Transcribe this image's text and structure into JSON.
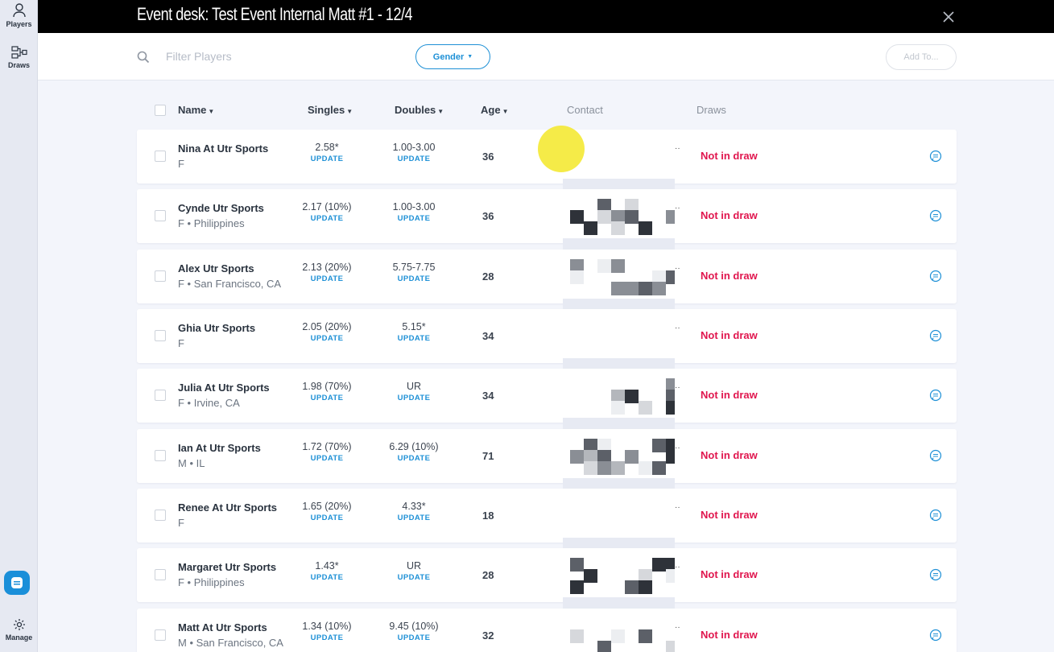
{
  "sidebar": {
    "players_label": "Players",
    "draws_label": "Draws",
    "manage_label": "Manage"
  },
  "header": {
    "title": "Event desk: Test Event Internal Matt #1 - 12/4"
  },
  "toolbar": {
    "search_placeholder": "Filter Players",
    "gender_label": "Gender",
    "add_to_label": "Add To..."
  },
  "columns": {
    "name": "Name",
    "singles": "Singles",
    "doubles": "Doubles",
    "age": "Age",
    "contact": "Contact",
    "draws": "Draws"
  },
  "update_label": "UPDATE",
  "players": [
    {
      "name": "Nina At Utr Sports",
      "sub": "F",
      "singles": "2.58*",
      "doubles": "1.00-3.00",
      "age": "36",
      "draw_status": "Not in draw"
    },
    {
      "name": "Cynde Utr Sports",
      "sub": "F • Philippines",
      "singles": "2.17 (10%)",
      "doubles": "1.00-3.00",
      "age": "36",
      "draw_status": "Not in draw"
    },
    {
      "name": "Alex Utr Sports",
      "sub": "F • San Francisco, CA",
      "singles": "2.13 (20%)",
      "doubles": "5.75-7.75",
      "age": "28",
      "draw_status": "Not in draw"
    },
    {
      "name": "Ghia Utr Sports",
      "sub": "F",
      "singles": "2.05 (20%)",
      "doubles": "5.15*",
      "age": "34",
      "draw_status": "Not in draw"
    },
    {
      "name": "Julia At Utr Sports",
      "sub": "F • Irvine, CA",
      "singles": "1.98 (70%)",
      "doubles": "UR",
      "age": "34",
      "draw_status": "Not in draw"
    },
    {
      "name": "Ian At Utr Sports",
      "sub": "M • IL",
      "singles": "1.72 (70%)",
      "doubles": "6.29 (10%)",
      "age": "71",
      "draw_status": "Not in draw"
    },
    {
      "name": "Renee At Utr Sports",
      "sub": "F",
      "singles": "1.65 (20%)",
      "doubles": "4.33*",
      "age": "18",
      "draw_status": "Not in draw"
    },
    {
      "name": "Margaret Utr Sports",
      "sub": "F • Philippines",
      "singles": "1.43*",
      "doubles": "UR",
      "age": "28",
      "draw_status": "Not in draw"
    },
    {
      "name": "Matt At Utr Sports",
      "sub": "M • San Francisco, CA",
      "singles": "1.34 (10%)",
      "doubles": "9.45 (10%)",
      "age": "32",
      "draw_status": "Not in draw"
    }
  ],
  "colors": {
    "accent": "#1e90d6",
    "status_red": "#e0164e",
    "header_bg": "#000000"
  }
}
